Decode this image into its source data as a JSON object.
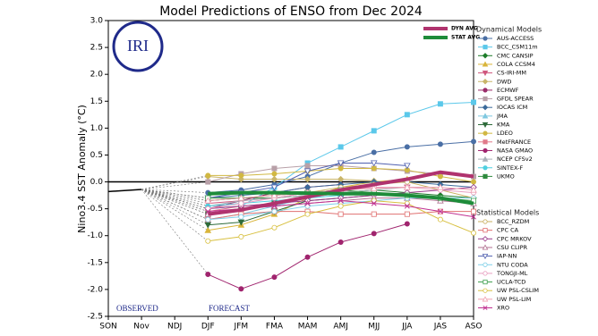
{
  "chart_data": {
    "type": "line",
    "title": "Model Predictions of ENSO from Dec 2024",
    "y_label": "Nino3.4 SST Anomaly (°C)",
    "logo_text": "IRI",
    "annotations": [
      "OBSERVED",
      "FORECAST"
    ],
    "categories": [
      "SON",
      "Nov",
      "NDJ",
      "DJF",
      "JFM",
      "FMA",
      "MAM",
      "AMJ",
      "MJJ",
      "JJA",
      "JAS",
      "ASO"
    ],
    "ylim": [
      -2.5,
      3.0
    ],
    "yticks": [
      {
        "value": -2.5,
        "label": "-2.5"
      },
      {
        "value": -2,
        "label": "-2.0"
      },
      {
        "value": -1.5,
        "label": "-1.5"
      },
      {
        "value": -1,
        "label": "-1.0"
      },
      {
        "value": -0.5,
        "label": "-0.5"
      },
      {
        "value": 0,
        "label": "0.0"
      },
      {
        "value": 0.5,
        "label": "0.5"
      },
      {
        "value": 1,
        "label": "1.0"
      },
      {
        "value": 1.5,
        "label": "1.5"
      },
      {
        "value": 2,
        "label": "2.0"
      },
      {
        "value": 2.5,
        "label": "2.5"
      },
      {
        "value": 3,
        "label": "3.0"
      }
    ],
    "observed": {
      "color": "#000000",
      "values": [
        -0.18,
        -0.14,
        null,
        null,
        null,
        null,
        null,
        null,
        null,
        null,
        null,
        null
      ]
    },
    "averages": [
      {
        "name": "DYN AVG",
        "color": "#b0336e",
        "values": [
          null,
          null,
          null,
          -0.6,
          -0.52,
          -0.4,
          -0.28,
          -0.15,
          -0.05,
          0.05,
          0.18,
          0.1
        ]
      },
      {
        "name": "STAT AVG",
        "color": "#1e8c3a",
        "values": [
          null,
          null,
          null,
          -0.22,
          -0.2,
          -0.2,
          -0.21,
          -0.22,
          -0.22,
          -0.25,
          -0.3,
          -0.4
        ]
      }
    ],
    "model_groups": [
      {
        "title": "Dynamical Models",
        "open_markers": false,
        "series": [
          {
            "name": "AUS-ACCESS",
            "color": "#4a6fa5",
            "marker": "circle",
            "values": [
              null,
              null,
              null,
              -0.2,
              -0.15,
              -0.05,
              0.1,
              0.35,
              0.55,
              0.65,
              0.7,
              0.75
            ]
          },
          {
            "name": "BCC_CSM11m",
            "color": "#5bc8ea",
            "marker": "square",
            "values": [
              null,
              null,
              null,
              -0.5,
              -0.45,
              -0.1,
              0.35,
              0.65,
              0.95,
              1.25,
              1.45,
              1.48
            ]
          },
          {
            "name": "CMC CANSIP",
            "color": "#1e7d2a",
            "marker": "diamond",
            "values": [
              null,
              null,
              null,
              -0.35,
              -0.3,
              -0.3,
              -0.25,
              -0.2,
              -0.15,
              -0.2,
              -0.25,
              -0.3
            ]
          },
          {
            "name": "COLA CCSM4",
            "color": "#d9b53a",
            "marker": "triangle",
            "values": [
              null,
              null,
              null,
              -0.9,
              -0.8,
              -0.6,
              -0.3,
              -0.1,
              0.0,
              0.05,
              null,
              null
            ]
          },
          {
            "name": "CS-IRI-MM",
            "color": "#d0587e",
            "marker": "triangle-down",
            "values": [
              null,
              null,
              null,
              -0.4,
              -0.35,
              -0.3,
              -0.2,
              -0.15,
              -0.1,
              -0.1,
              null,
              null
            ]
          },
          {
            "name": "DWD",
            "color": "#c9b56a",
            "marker": "diamond",
            "values": [
              null,
              null,
              null,
              0.1,
              0.05,
              0.05,
              0.05,
              0.05,
              0.02,
              null,
              null,
              null
            ]
          },
          {
            "name": "ECMWF",
            "color": "#9b2c6a",
            "marker": "circle",
            "values": [
              null,
              null,
              null,
              -0.5,
              -0.35,
              -0.2,
              -0.1,
              -0.05,
              null,
              null,
              null,
              null
            ]
          },
          {
            "name": "GFDL SPEAR",
            "color": "#b8a0a8",
            "marker": "square",
            "values": [
              null,
              null,
              null,
              0.0,
              0.15,
              0.25,
              0.3,
              0.3,
              0.25,
              0.2,
              0.15,
              0.1
            ]
          },
          {
            "name": "IOCAS ICM",
            "color": "#3b6a9a",
            "marker": "diamond",
            "values": [
              null,
              null,
              null,
              -0.3,
              -0.25,
              -0.2,
              -0.1,
              -0.05,
              0.0,
              0.0,
              -0.05,
              -0.1
            ]
          },
          {
            "name": "JMA",
            "color": "#7fc8e0",
            "marker": "triangle",
            "values": [
              null,
              null,
              null,
              -0.7,
              -0.6,
              -0.45,
              -0.3,
              -0.2,
              null,
              null,
              null,
              null
            ]
          },
          {
            "name": "KMA",
            "color": "#2e6b3a",
            "marker": "triangle-down",
            "values": [
              null,
              null,
              null,
              -0.8,
              -0.75,
              -0.55,
              -0.35,
              -0.3,
              -0.25,
              null,
              null,
              null
            ]
          },
          {
            "name": "LDEO",
            "color": "#d1b842",
            "marker": "circle",
            "values": [
              null,
              null,
              null,
              0.12,
              0.12,
              0.15,
              0.2,
              0.25,
              0.25,
              0.22,
              0.1,
              0.0
            ]
          },
          {
            "name": "MetFRANCE",
            "color": "#e07a8a",
            "marker": "square",
            "values": [
              null,
              null,
              null,
              -0.55,
              -0.45,
              -0.4,
              -0.3,
              -0.2,
              null,
              null,
              null,
              null
            ]
          },
          {
            "name": "NASA GMAO",
            "color": "#a0246e",
            "marker": "circle",
            "values": [
              null,
              null,
              null,
              -1.72,
              -1.99,
              -1.77,
              -1.4,
              -1.12,
              -0.96,
              -0.78,
              null,
              null
            ]
          },
          {
            "name": "NCEP CFSv2",
            "color": "#aab0b8",
            "marker": "triangle",
            "values": [
              null,
              null,
              null,
              -0.45,
              -0.35,
              -0.3,
              -0.25,
              -0.2,
              -0.15,
              -0.1,
              -0.1,
              null
            ]
          },
          {
            "name": "SINTEX-F",
            "color": "#4fd0e0",
            "marker": "circle",
            "values": [
              null,
              null,
              null,
              -0.45,
              -0.4,
              -0.35,
              -0.3,
              -0.25,
              null,
              null,
              null,
              null
            ]
          },
          {
            "name": "UKMO",
            "color": "#2e8b3e",
            "marker": "square",
            "values": [
              null,
              null,
              null,
              -0.6,
              -0.5,
              -0.4,
              null,
              null,
              null,
              null,
              null,
              null
            ]
          }
        ]
      },
      {
        "title": "Statistical Models",
        "open_markers": true,
        "series": [
          {
            "name": "BCC_RZDM",
            "color": "#c9b060",
            "marker": "circle",
            "values": [
              null,
              null,
              null,
              -0.3,
              -0.3,
              -0.25,
              -0.2,
              -0.1,
              -0.05,
              0.0,
              -0.15,
              -0.3
            ]
          },
          {
            "name": "CPC CA",
            "color": "#e07070",
            "marker": "square",
            "values": [
              null,
              null,
              null,
              -0.7,
              -0.6,
              -0.55,
              -0.55,
              -0.6,
              -0.6,
              -0.6,
              -0.55,
              -0.55
            ]
          },
          {
            "name": "CPC MRKOV",
            "color": "#9a3a8a",
            "marker": "diamond",
            "values": [
              null,
              null,
              null,
              -0.5,
              -0.45,
              -0.4,
              -0.35,
              -0.3,
              -0.25,
              -0.2,
              -0.15,
              -0.1
            ]
          },
          {
            "name": "CSU CLIPR",
            "color": "#b07090",
            "marker": "triangle",
            "values": [
              null,
              null,
              null,
              -0.6,
              -0.5,
              -0.45,
              -0.4,
              -0.35,
              -0.3,
              -0.3,
              -0.35,
              -0.4
            ]
          },
          {
            "name": "IAP-NN",
            "color": "#5060b0",
            "marker": "triangle-down",
            "values": [
              null,
              null,
              null,
              -0.3,
              -0.2,
              -0.1,
              0.2,
              0.35,
              0.35,
              0.3,
              null,
              null
            ]
          },
          {
            "name": "NTU CODA",
            "color": "#80d0e8",
            "marker": "circle",
            "values": [
              null,
              null,
              null,
              -0.7,
              -0.65,
              -0.55,
              -0.45,
              -0.4,
              -0.35,
              -0.3,
              -0.3,
              -0.3
            ]
          },
          {
            "name": "TONGJI-ML",
            "color": "#e8a0c0",
            "marker": "circle",
            "values": [
              null,
              null,
              null,
              -0.5,
              -0.4,
              -0.3,
              -0.2,
              -0.15,
              -0.1,
              -0.1,
              -0.15,
              -0.2
            ]
          },
          {
            "name": "UCLA-TCD",
            "color": "#40a050",
            "marker": "square",
            "values": [
              null,
              null,
              null,
              -0.3,
              -0.3,
              -0.25,
              -0.2,
              -0.15,
              -0.2,
              -0.25,
              -0.3,
              -0.35
            ]
          },
          {
            "name": "UW PSL-CSLIM",
            "color": "#d8c040",
            "marker": "circle",
            "values": [
              null,
              null,
              null,
              -1.1,
              -1.02,
              -0.85,
              -0.6,
              -0.45,
              -0.35,
              -0.4,
              -0.7,
              -0.95
            ]
          },
          {
            "name": "UW PSL-LIM",
            "color": "#f0a0b0",
            "marker": "triangle",
            "values": [
              null,
              null,
              null,
              -0.35,
              -0.3,
              -0.25,
              -0.2,
              -0.15,
              -0.12,
              -0.1,
              -0.1,
              -0.15
            ]
          },
          {
            "name": "XRO",
            "color": "#c03090",
            "marker": "x",
            "values": [
              null,
              null,
              null,
              -0.55,
              -0.5,
              -0.45,
              -0.4,
              -0.35,
              -0.4,
              -0.45,
              -0.55,
              -0.65
            ]
          }
        ]
      }
    ]
  }
}
